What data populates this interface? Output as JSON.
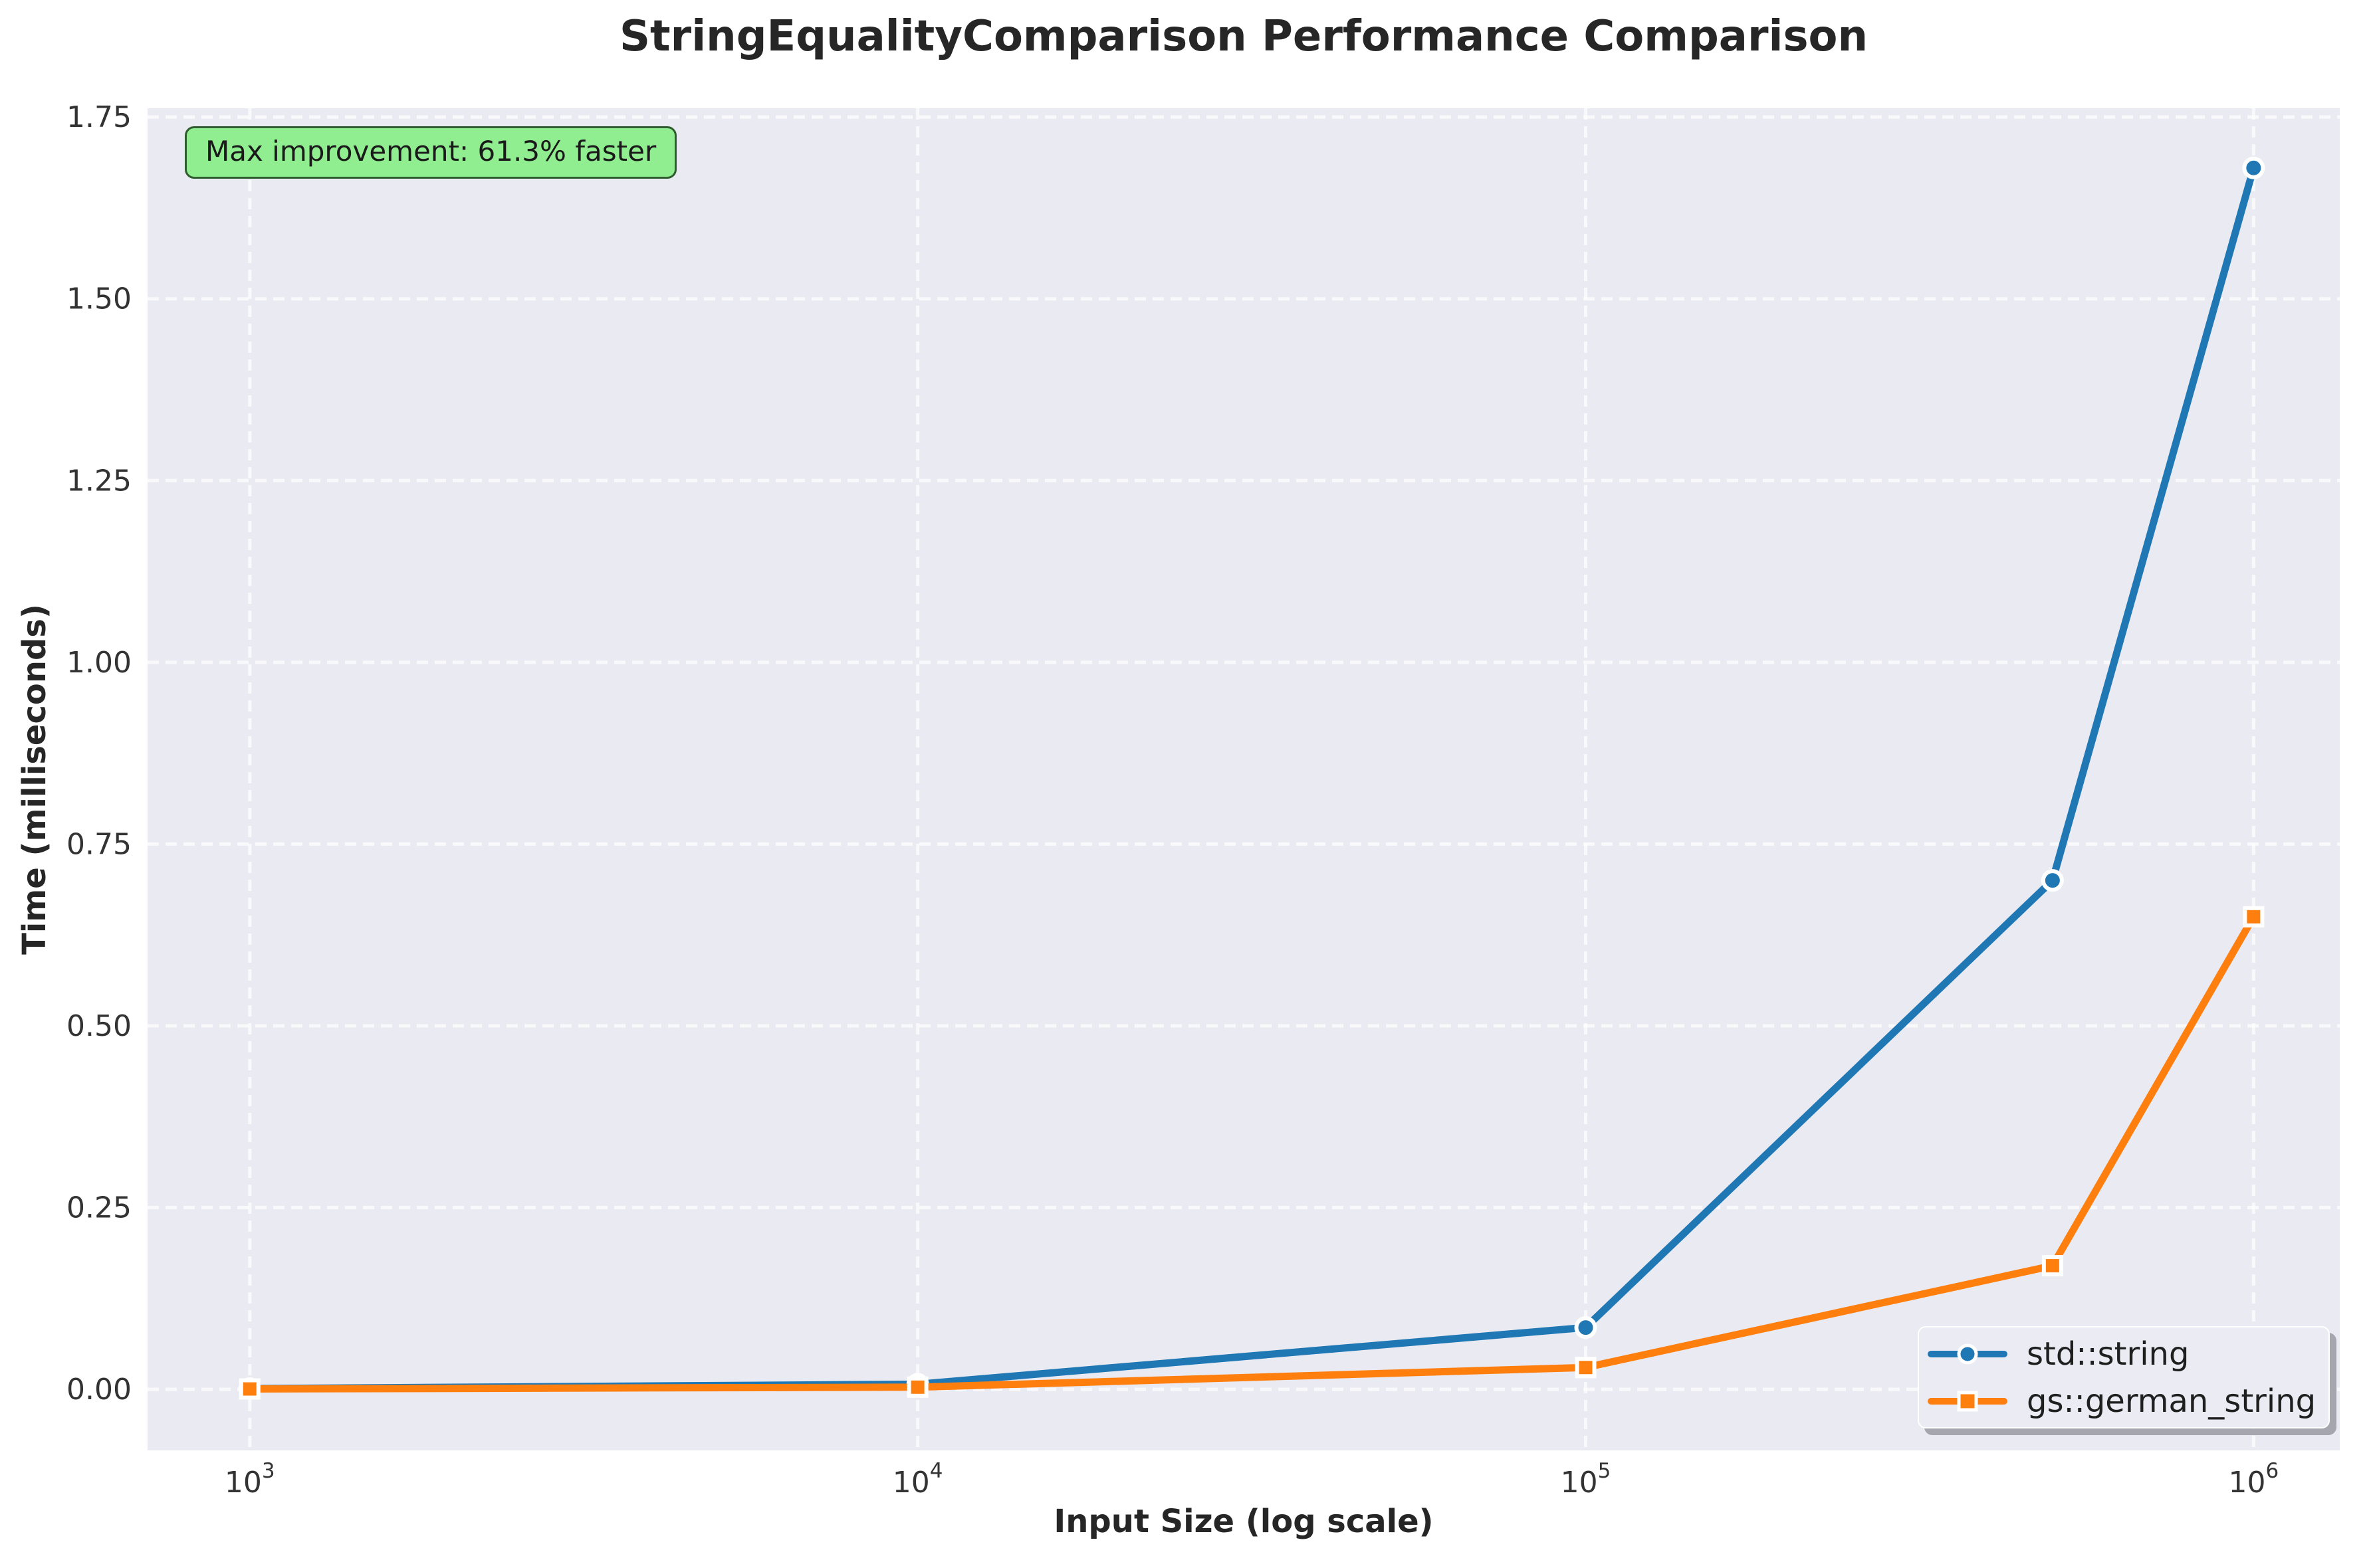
{
  "chart_data": {
    "type": "line",
    "title": "StringEqualityComparison Performance Comparison",
    "xlabel": "Input Size (log scale)",
    "ylabel": "Time (milliseconds)",
    "x_scale": "log",
    "x": [
      1000,
      10000,
      100000,
      500000,
      1000000
    ],
    "series": [
      {
        "name": "std::string",
        "color": "#1f77b4",
        "marker": "circle",
        "values": [
          0.001,
          0.007,
          0.085,
          0.7,
          1.68
        ]
      },
      {
        "name": "gs::german_string",
        "color": "#ff7f0e",
        "marker": "square",
        "values": [
          0.0005,
          0.003,
          0.03,
          0.17,
          0.65
        ]
      }
    ],
    "x_ticks": [
      {
        "value": 1000,
        "base": "10",
        "exponent": "3"
      },
      {
        "value": 10000,
        "base": "10",
        "exponent": "4"
      },
      {
        "value": 100000,
        "base": "10",
        "exponent": "5"
      },
      {
        "value": 1000000,
        "base": "10",
        "exponent": "6"
      }
    ],
    "y_ticks": [
      {
        "value": 0.0,
        "label": "0.00"
      },
      {
        "value": 0.25,
        "label": "0.25"
      },
      {
        "value": 0.5,
        "label": "0.50"
      },
      {
        "value": 0.75,
        "label": "0.75"
      },
      {
        "value": 1.0,
        "label": "1.00"
      },
      {
        "value": 1.25,
        "label": "1.25"
      },
      {
        "value": 1.5,
        "label": "1.50"
      },
      {
        "value": 1.75,
        "label": "1.75"
      }
    ],
    "ylim": [
      -0.084,
      1.762
    ],
    "xlim_log10": [
      2.847,
      6.129
    ],
    "grid": "dashed",
    "legend_position": "lower right",
    "annotation": "Max improvement: 61.3% faster",
    "colors": {
      "plot_bg": "#eaeaf2",
      "grid": "#ffffff",
      "text": "#262626",
      "tick_text": "#333333",
      "annotation_bg": "#90ee90",
      "annotation_border": "#2f5d2f",
      "legend_bg": "#ebebf3",
      "legend_border": "#ffffff",
      "legend_shadow": "#787882"
    }
  }
}
